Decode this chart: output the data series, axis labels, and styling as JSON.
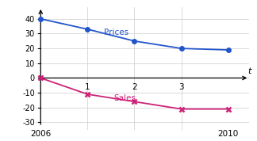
{
  "prices_x": [
    0,
    1,
    2,
    3,
    4
  ],
  "prices_y": [
    40,
    33,
    25,
    20,
    19
  ],
  "sales_x": [
    0,
    1,
    2,
    3,
    4
  ],
  "sales_y": [
    0,
    -11,
    -16,
    -21,
    -21
  ],
  "prices_color": "#2255cc",
  "sales_color": "#cc2277",
  "prices_label": "Prices",
  "sales_label": "Sales",
  "t_ticks": [
    1,
    2,
    3
  ],
  "year_labels": [
    "2006",
    "2010"
  ],
  "yticks": [
    -30,
    -20,
    -10,
    0,
    10,
    20,
    30,
    40
  ],
  "ylim": [
    -35,
    48
  ],
  "xlim": [
    -0.1,
    4.45
  ],
  "t_label": "t",
  "background_color": "#ffffff",
  "grid_color": "#cccccc"
}
